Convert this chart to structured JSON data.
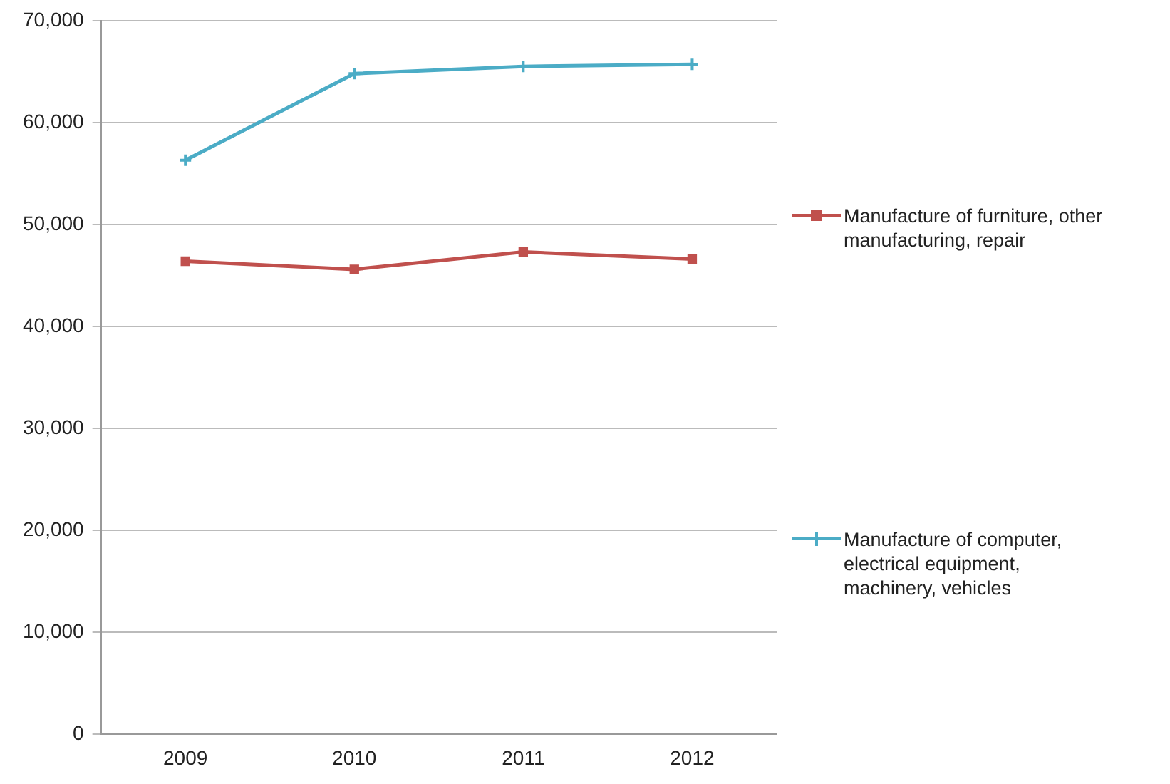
{
  "chart_data": {
    "type": "line",
    "categories": [
      "2009",
      "2010",
      "2011",
      "2012"
    ],
    "series": [
      {
        "name": "Manufacture of furniture, other manufacturing, repair",
        "color": "#c0504d",
        "marker": "square",
        "values": [
          46400,
          45600,
          47300,
          46600
        ]
      },
      {
        "name": "Manufacture of computer, electrical equipment, machinery, vehicles",
        "color": "#4bacc6",
        "marker": "cross",
        "values": [
          56300,
          64800,
          65500,
          65700
        ]
      }
    ],
    "ylim": [
      0,
      70000
    ],
    "yticks": [
      {
        "value": 0,
        "label": "0"
      },
      {
        "value": 10000,
        "label": "10,000"
      },
      {
        "value": 20000,
        "label": "20,000"
      },
      {
        "value": 30000,
        "label": "30,000"
      },
      {
        "value": 40000,
        "label": "40,000"
      },
      {
        "value": 50000,
        "label": "50,000"
      },
      {
        "value": 60000,
        "label": "60,000"
      },
      {
        "value": 70000,
        "label": "70,000"
      }
    ],
    "grid": "y",
    "legend": "right"
  }
}
